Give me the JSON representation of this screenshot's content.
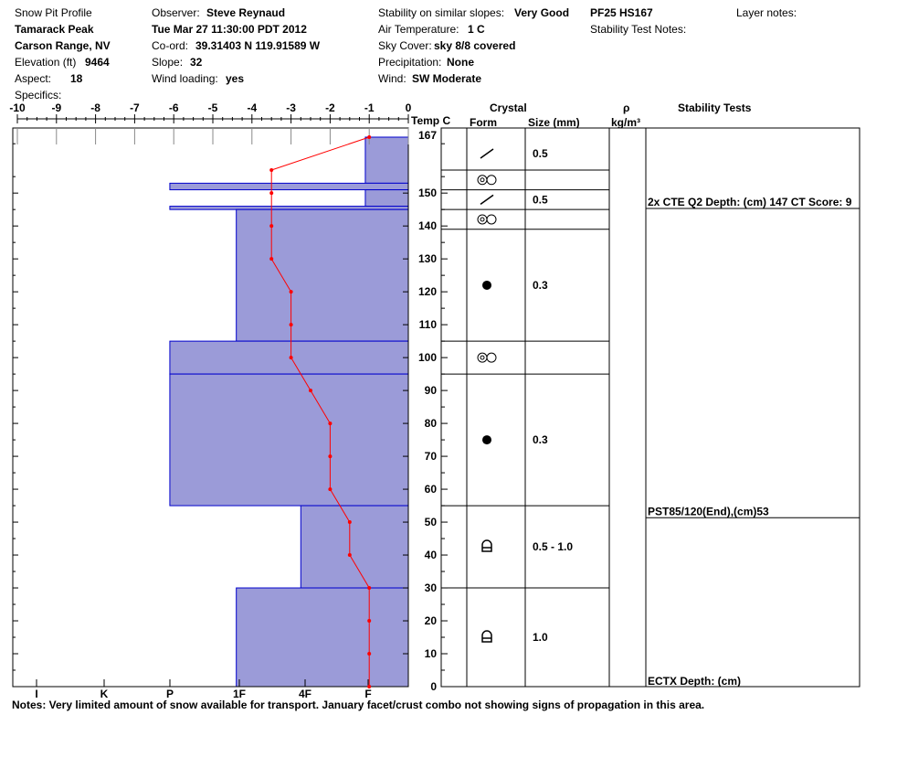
{
  "header": {
    "title": "Snow Pit Profile",
    "location": "Tamarack Peak",
    "range": "Carson Range, NV",
    "elevation_label": "Elevation (ft)",
    "elevation_value": "9464",
    "aspect_label": "Aspect:",
    "aspect_value": "18",
    "specifics_label": "Specifics:",
    "observer_label": "Observer:",
    "observer_value": "Steve Reynaud",
    "datetime": "Tue Mar 27 11:30:00 PDT 2012",
    "coord_label": "Co-ord:",
    "coord_value": "39.31403 N 119.91589 W",
    "slope_label": "Slope:",
    "slope_value": "32",
    "wind_loading_label": "Wind loading:",
    "wind_loading_value": "yes",
    "stability_label": "Stability on similar slopes:",
    "stability_value": "Very Good",
    "air_temp_label": "Air Temperature:",
    "air_temp_value": "1 C",
    "sky_label": "Sky Cover:",
    "sky_value": "sky 8/8 covered",
    "precip_label": "Precipitation:",
    "precip_value": "None",
    "wind_label": "Wind:",
    "wind_value": "SW Moderate",
    "pit_id": "PF25 HS167",
    "stability_test_notes_label": "Stability Test Notes:",
    "layer_notes_label": "Layer notes:"
  },
  "columns": {
    "temp": "Temp C",
    "crystal": "Crystal",
    "form": "Form",
    "size": "Size (mm)",
    "rho": "ρ",
    "density_unit": "kg/m³",
    "stability_tests": "Stability Tests"
  },
  "notes": "Notes:  Very limited amount of snow available for transport.  January facet/crust combo not showing signs of propagation in this area.",
  "chart_data": {
    "type": "snow-profile",
    "temperature_axis": {
      "min": -10,
      "max": 0,
      "ticks": [
        -10,
        -9,
        -8,
        -7,
        -6,
        -5,
        -4,
        -3,
        -2,
        -1,
        0
      ],
      "label": "Temp C"
    },
    "hardness_axis": {
      "ticks": [
        "I",
        "K",
        "P",
        "1F",
        "4F",
        "F"
      ]
    },
    "height_axis": {
      "min": 0,
      "max": 167,
      "ticks": [
        0,
        10,
        20,
        30,
        40,
        50,
        60,
        70,
        80,
        90,
        100,
        110,
        120,
        130,
        140,
        150
      ],
      "top_label": "167"
    },
    "color_hardness": "#9b9bd8",
    "color_hardness_edge": "#0000cc",
    "color_temp": "#ff0000",
    "hardness_layers": [
      {
        "top": 167,
        "bottom": 153,
        "hardness_temp_scale": -1.1
      },
      {
        "top": 153,
        "bottom": 151,
        "hardness_temp_scale": -6.1
      },
      {
        "top": 151,
        "bottom": 146,
        "hardness_temp_scale": -1.1
      },
      {
        "top": 146,
        "bottom": 145,
        "hardness_temp_scale": -6.1
      },
      {
        "top": 145,
        "bottom": 105,
        "hardness_temp_scale": -4.4
      },
      {
        "top": 105,
        "bottom": 95,
        "hardness_temp_scale": -6.1
      },
      {
        "top": 95,
        "bottom": 55,
        "hardness_temp_scale": -6.1
      },
      {
        "top": 55,
        "bottom": 30,
        "hardness_temp_scale": -2.75
      },
      {
        "top": 30,
        "bottom": 0,
        "hardness_temp_scale": -4.4
      }
    ],
    "temperature_profile": [
      {
        "height": 167,
        "temp": -1.0
      },
      {
        "height": 157,
        "temp": -3.5
      },
      {
        "height": 150,
        "temp": -3.5
      },
      {
        "height": 140,
        "temp": -3.5
      },
      {
        "height": 130,
        "temp": -3.5
      },
      {
        "height": 120,
        "temp": -3.0
      },
      {
        "height": 110,
        "temp": -3.0
      },
      {
        "height": 100,
        "temp": -3.0
      },
      {
        "height": 90,
        "temp": -2.5
      },
      {
        "height": 80,
        "temp": -2.0
      },
      {
        "height": 70,
        "temp": -2.0
      },
      {
        "height": 60,
        "temp": -2.0
      },
      {
        "height": 50,
        "temp": -1.5
      },
      {
        "height": 40,
        "temp": -1.5
      },
      {
        "height": 30,
        "temp": -1.0
      },
      {
        "height": 20,
        "temp": -1.0
      },
      {
        "height": 10,
        "temp": -1.0
      },
      {
        "height": 0,
        "temp": -1.0
      }
    ],
    "crystal_layers": [
      {
        "top": 167,
        "bottom": 157,
        "form": "decomposing",
        "size": "0.5"
      },
      {
        "top": 157,
        "bottom": 151,
        "form": "melt-freeze",
        "size": ""
      },
      {
        "top": 151,
        "bottom": 145,
        "form": "decomposing",
        "size": "0.5"
      },
      {
        "top": 145,
        "bottom": 139,
        "form": "melt-freeze",
        "size": ""
      },
      {
        "top": 139,
        "bottom": 105,
        "form": "rounded",
        "size": "0.3"
      },
      {
        "top": 105,
        "bottom": 95,
        "form": "melt-freeze",
        "size": ""
      },
      {
        "top": 95,
        "bottom": 55,
        "form": "rounded",
        "size": "0.3"
      },
      {
        "top": 55,
        "bottom": 30,
        "form": "depth-hoar",
        "size": "0.5 - 1.0"
      },
      {
        "top": 30,
        "bottom": 0,
        "form": "depth-hoar",
        "size": "1.0"
      }
    ],
    "stability_tests": [
      {
        "height": 147,
        "text": "2x CTE Q2 Depth: (cm) 147 CT Score: 9"
      },
      {
        "height": 53,
        "text": "PST85/120(End),(cm)53"
      },
      {
        "height": 0,
        "text": "ECTX   Depth: (cm)"
      }
    ]
  }
}
